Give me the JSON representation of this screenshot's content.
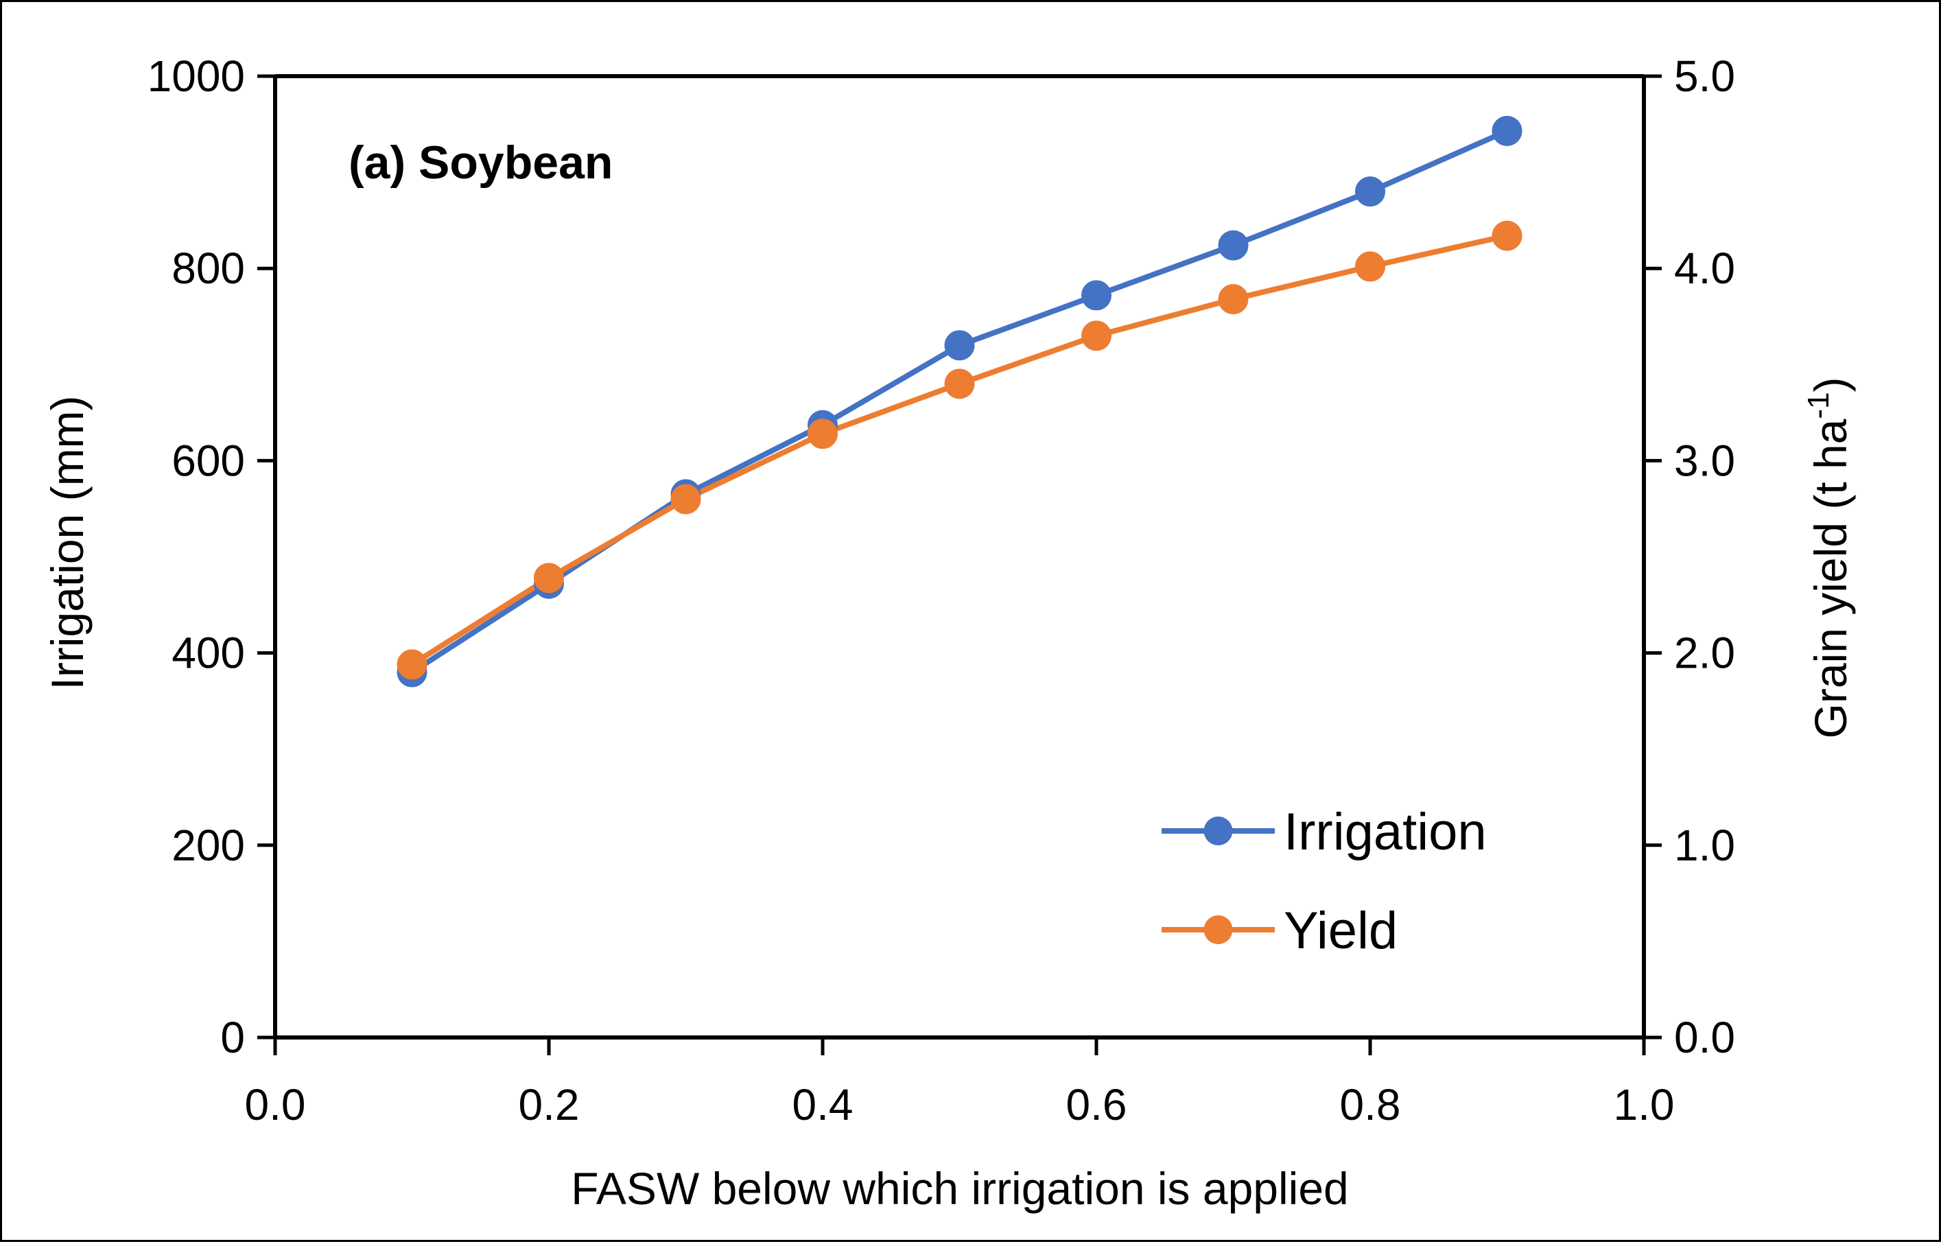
{
  "chart_data": {
    "type": "line",
    "title": "(a) Soybean",
    "xlabel": "FASW below which irrigation is applied",
    "ylabel": "Irrigation (mm)",
    "y2label_main": "Grain yield (t ha",
    "y2label_sup": "-1",
    "y2label_close": ")",
    "xlim": [
      0.0,
      1.0
    ],
    "ylim": [
      0,
      1000
    ],
    "y2lim": [
      0.0,
      5.0
    ],
    "x_ticks": [
      "0.0",
      "0.2",
      "0.4",
      "0.6",
      "0.8",
      "1.0"
    ],
    "y_ticks": [
      "0",
      "200",
      "400",
      "600",
      "800",
      "1000"
    ],
    "y2_ticks": [
      "0.0",
      "1.0",
      "2.0",
      "3.0",
      "4.0",
      "5.0"
    ],
    "x": [
      0.1,
      0.2,
      0.3,
      0.4,
      0.5,
      0.6,
      0.7,
      0.8,
      0.9
    ],
    "series": [
      {
        "name": "Irrigation",
        "axis": "left",
        "color": "#4472C4",
        "values": [
          380,
          472,
          565,
          637,
          720,
          772,
          824,
          880,
          943
        ]
      },
      {
        "name": "Yield",
        "axis": "right",
        "color": "#ED7D31",
        "values": [
          1.94,
          2.39,
          2.8,
          3.14,
          3.4,
          3.65,
          3.84,
          4.01,
          4.17
        ]
      }
    ],
    "legend": "bottom-right",
    "grid": false
  }
}
